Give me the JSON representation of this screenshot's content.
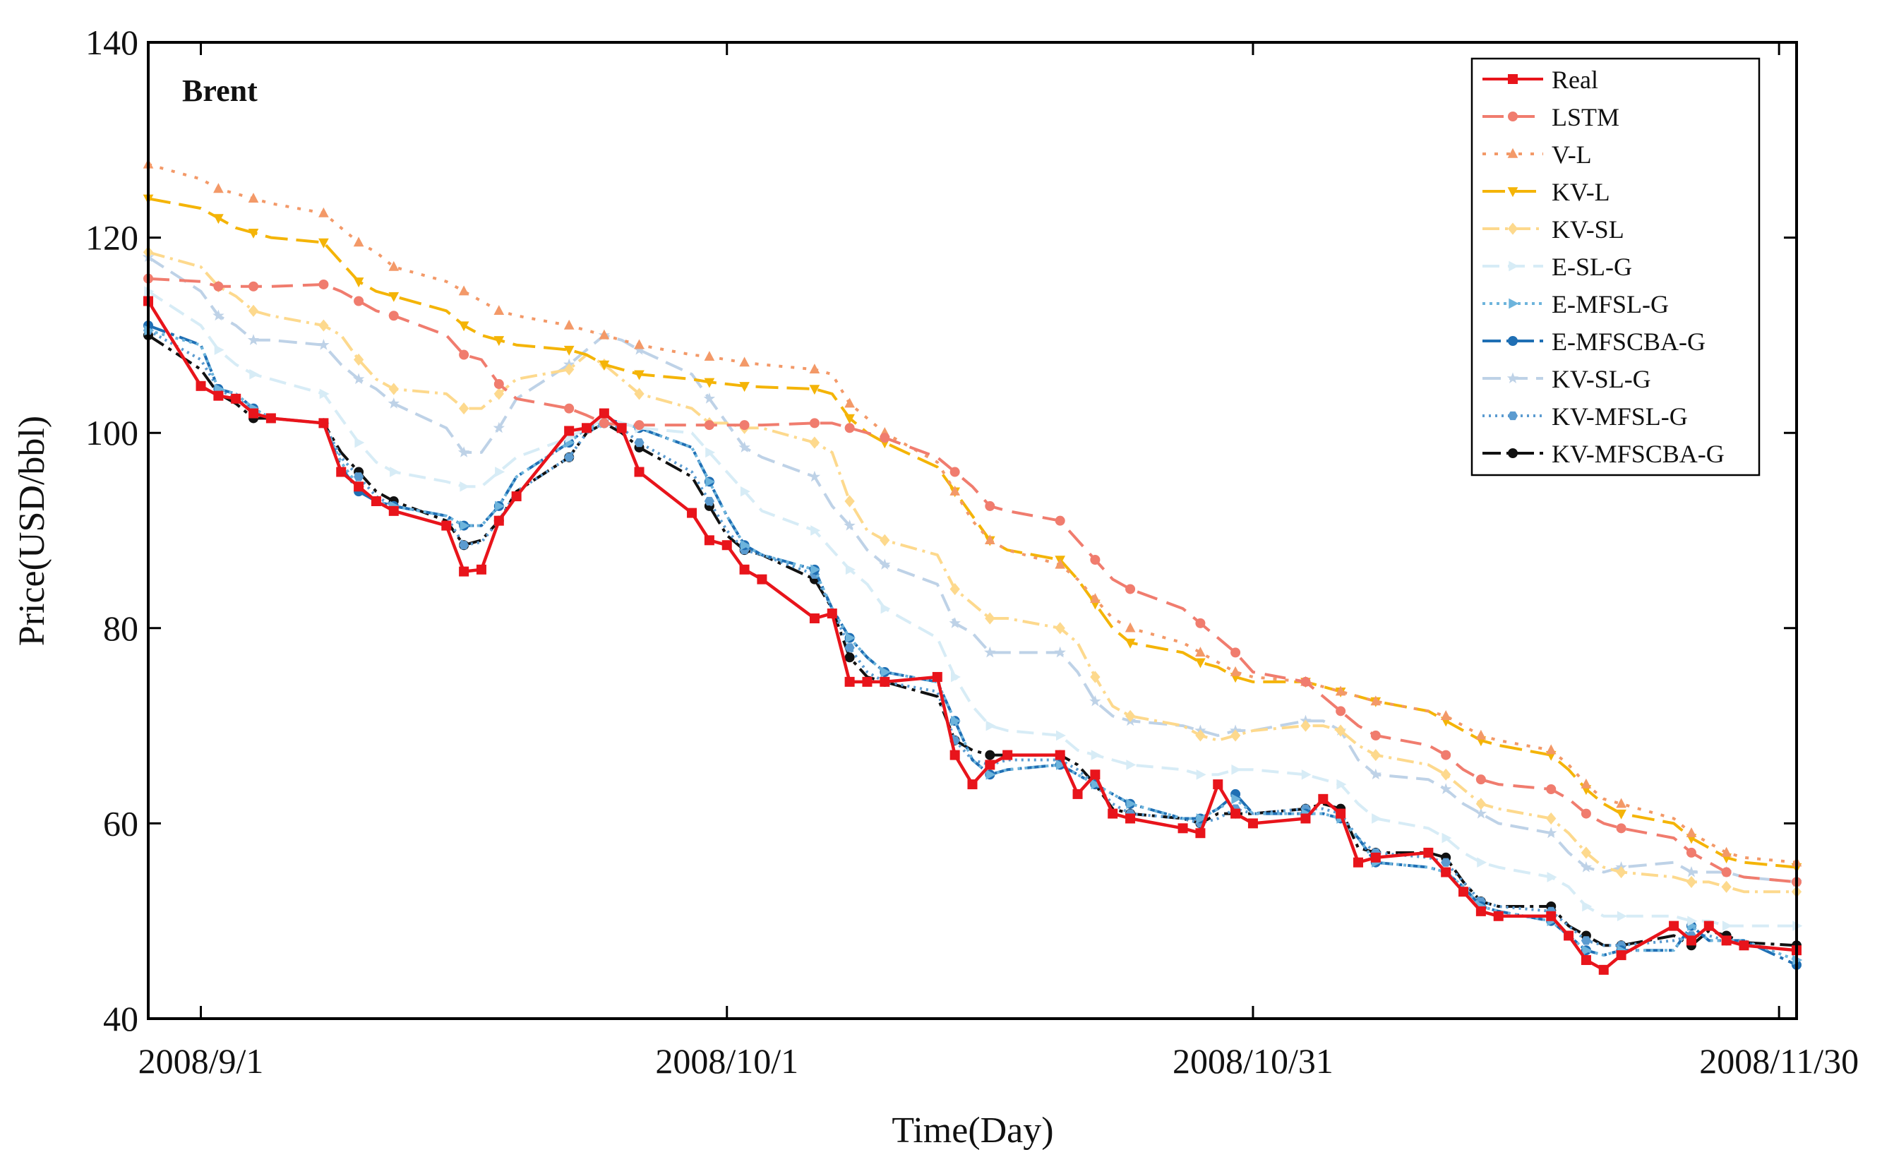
{
  "chart_data": {
    "type": "line",
    "title": "Brent",
    "xlabel": "Time(Day)",
    "ylabel": "Price(USD/bbl)",
    "xlim": [
      -3,
      91
    ],
    "ylim": [
      40,
      140
    ],
    "yticks": [
      40,
      60,
      80,
      100,
      120,
      140
    ],
    "xticks": [
      {
        "x": 0,
        "label": "2008/9/1"
      },
      {
        "x": 30,
        "label": "2008/10/1"
      },
      {
        "x": 60,
        "label": "2008/10/31"
      },
      {
        "x": 90,
        "label": "2008/11/30"
      }
    ],
    "legend_position": "top-right",
    "x": [
      -3,
      0,
      1,
      2,
      3,
      4,
      7,
      8,
      9,
      10,
      11,
      14,
      15,
      16,
      17,
      18,
      21,
      22,
      23,
      24,
      25,
      28,
      29,
      30,
      31,
      32,
      35,
      36,
      37,
      38,
      39,
      42,
      43,
      44,
      45,
      46,
      49,
      50,
      51,
      52,
      53,
      56,
      57,
      58,
      59,
      60,
      63,
      64,
      65,
      66,
      67,
      70,
      71,
      72,
      73,
      74,
      77,
      78,
      79,
      80,
      81,
      84,
      85,
      86,
      87,
      88,
      91
    ],
    "series": [
      {
        "name": "Real",
        "color": "#e8141b",
        "dash": "",
        "marker": "square",
        "values": [
          113.5,
          104.8,
          103.8,
          103.5,
          102.0,
          101.5,
          101.0,
          96.0,
          94.5,
          93.0,
          92.0,
          90.5,
          85.8,
          86.0,
          91.0,
          93.5,
          100.2,
          100.5,
          102.0,
          100.5,
          96.0,
          91.8,
          89.0,
          88.5,
          86.0,
          85.0,
          81.0,
          81.5,
          74.5,
          74.5,
          74.5,
          75.0,
          67.0,
          64.0,
          66.0,
          67.0,
          67.0,
          63.0,
          65.0,
          61.0,
          60.5,
          59.5,
          59.0,
          64.0,
          61.0,
          60.0,
          60.5,
          62.5,
          61.0,
          56.0,
          56.5,
          57.0,
          55.0,
          53.0,
          51.0,
          50.5,
          50.5,
          48.5,
          46.0,
          45.0,
          46.5,
          49.5,
          48.0,
          49.5,
          48.0,
          47.5,
          47.0
        ]
      },
      {
        "name": "LSTM",
        "color": "#f07c6e",
        "dash": "30 14",
        "marker": "circle",
        "values": [
          115.8,
          115.5,
          115.0,
          115.0,
          115.0,
          115.0,
          115.2,
          114.5,
          113.5,
          112.5,
          112.0,
          110.0,
          108.0,
          107.5,
          105.0,
          103.5,
          102.5,
          101.8,
          101.0,
          100.8,
          100.8,
          100.8,
          100.8,
          100.8,
          100.8,
          100.8,
          101.0,
          101.0,
          100.5,
          100.0,
          99.5,
          97.5,
          96.0,
          94.5,
          92.5,
          92.0,
          91.0,
          89.0,
          87.0,
          85.0,
          84.0,
          82.0,
          80.5,
          79.0,
          77.5,
          75.5,
          74.5,
          73.0,
          71.5,
          70.0,
          69.0,
          68.0,
          67.0,
          65.5,
          64.5,
          64.0,
          63.5,
          62.5,
          61.0,
          60.0,
          59.5,
          58.5,
          57.0,
          56.0,
          55.0,
          54.5,
          54.0
        ]
      },
      {
        "name": "V-L",
        "color": "#f39968",
        "dash": "5 12",
        "marker": "triangle-up",
        "values": [
          127.5,
          126.0,
          125.0,
          124.5,
          124.0,
          123.5,
          122.5,
          121.0,
          119.5,
          118.5,
          117.0,
          115.5,
          114.5,
          113.5,
          112.5,
          112.0,
          111.0,
          110.5,
          110.0,
          109.5,
          109.0,
          108.0,
          107.8,
          107.5,
          107.2,
          107.0,
          106.5,
          106.0,
          103.0,
          101.5,
          100.0,
          97.0,
          94.0,
          91.0,
          89.0,
          88.0,
          86.5,
          85.0,
          83.0,
          81.0,
          80.0,
          78.5,
          77.5,
          76.5,
          75.5,
          75.0,
          74.5,
          74.0,
          73.5,
          73.0,
          72.5,
          71.5,
          71.0,
          70.0,
          69.0,
          68.5,
          67.5,
          66.0,
          64.0,
          62.5,
          62.0,
          60.5,
          59.0,
          58.0,
          57.0,
          56.5,
          56.0
        ]
      },
      {
        "name": "KV-L",
        "color": "#f4b407",
        "dash": "32 12",
        "marker": "triangle-down",
        "values": [
          124.0,
          123.0,
          122.0,
          121.0,
          120.5,
          120.0,
          119.5,
          117.5,
          115.5,
          114.5,
          114.0,
          112.5,
          111.0,
          110.0,
          109.5,
          109.0,
          108.5,
          108.0,
          107.0,
          106.5,
          106.0,
          105.5,
          105.2,
          105.0,
          104.8,
          104.7,
          104.5,
          104.0,
          101.5,
          100.0,
          99.0,
          96.5,
          94.0,
          91.5,
          89.0,
          88.0,
          87.0,
          85.0,
          82.5,
          80.0,
          78.5,
          77.5,
          76.5,
          76.0,
          75.0,
          74.5,
          74.5,
          74.0,
          73.5,
          73.0,
          72.5,
          71.5,
          70.5,
          69.5,
          68.5,
          68.0,
          67.0,
          65.5,
          63.5,
          62.0,
          61.0,
          60.0,
          58.5,
          57.5,
          56.5,
          56.0,
          55.5
        ]
      },
      {
        "name": "KV-SL",
        "color": "#fdd98d",
        "dash": "24 8 4 8",
        "marker": "diamond",
        "values": [
          118.5,
          117.0,
          115.0,
          114.0,
          112.5,
          112.0,
          111.0,
          110.0,
          107.5,
          105.5,
          104.5,
          104.0,
          102.5,
          102.5,
          104.0,
          105.5,
          106.5,
          108.0,
          107.0,
          105.5,
          104.0,
          102.5,
          101.0,
          101.0,
          100.5,
          100.5,
          99.0,
          98.0,
          93.0,
          90.0,
          89.0,
          87.5,
          84.0,
          82.5,
          81.0,
          81.0,
          80.0,
          78.5,
          75.0,
          72.0,
          71.0,
          70.0,
          69.0,
          68.5,
          69.0,
          69.5,
          70.0,
          70.0,
          69.5,
          68.0,
          67.0,
          66.0,
          65.0,
          63.5,
          62.0,
          61.5,
          60.5,
          59.0,
          57.0,
          55.5,
          55.0,
          54.5,
          54.0,
          54.0,
          53.5,
          53.0,
          53.0
        ]
      },
      {
        "name": "E-SL-G",
        "color": "#d7ecf6",
        "dash": "24 12",
        "marker": "triangle-right",
        "values": [
          114.5,
          111.0,
          108.5,
          107.0,
          106.0,
          105.5,
          104.0,
          101.5,
          99.0,
          97.0,
          96.0,
          95.0,
          94.5,
          94.5,
          96.0,
          97.5,
          99.5,
          100.5,
          101.5,
          101.0,
          100.5,
          100.0,
          98.0,
          96.0,
          94.0,
          92.0,
          90.0,
          88.0,
          86.0,
          84.5,
          82.0,
          79.0,
          75.0,
          72.0,
          70.0,
          69.5,
          69.0,
          67.5,
          67.0,
          66.5,
          66.0,
          65.5,
          65.0,
          65.0,
          65.5,
          65.5,
          65.0,
          64.5,
          64.0,
          62.0,
          60.5,
          59.5,
          58.5,
          57.0,
          56.0,
          55.5,
          54.5,
          53.5,
          51.5,
          50.5,
          50.5,
          50.5,
          50.0,
          50.0,
          49.5,
          49.5,
          49.5
        ]
      },
      {
        "name": "E-MFSL-G",
        "color": "#6db4dc",
        "dash": "4 6",
        "marker": "triangle-right",
        "values": [
          110.5,
          109.0,
          104.5,
          104.0,
          102.5,
          101.5,
          101.0,
          97.0,
          94.5,
          93.0,
          92.5,
          91.5,
          90.5,
          90.5,
          92.5,
          95.5,
          99.0,
          100.5,
          101.0,
          101.0,
          100.5,
          98.5,
          95.0,
          91.5,
          88.5,
          87.5,
          86.0,
          82.0,
          79.0,
          77.0,
          75.5,
          74.5,
          70.5,
          66.5,
          65.0,
          65.5,
          66.0,
          65.0,
          64.0,
          63.0,
          62.0,
          60.5,
          60.5,
          61.5,
          62.5,
          61.0,
          61.0,
          61.0,
          60.5,
          58.5,
          56.0,
          55.5,
          55.0,
          53.5,
          51.5,
          51.0,
          50.0,
          48.5,
          47.0,
          46.5,
          47.0,
          47.0,
          49.5,
          48.0,
          48.0,
          48.0,
          46.0
        ]
      },
      {
        "name": "E-MFSCBA-G",
        "color": "#1f6fb4",
        "dash": "26 8 5 8",
        "marker": "circle",
        "values": [
          111.0,
          109.0,
          104.5,
          104.0,
          102.5,
          101.5,
          101.0,
          96.5,
          94.0,
          93.0,
          92.5,
          91.5,
          90.5,
          90.5,
          92.5,
          95.5,
          99.0,
          100.5,
          101.5,
          101.0,
          100.5,
          98.5,
          95.0,
          91.5,
          88.5,
          87.5,
          86.0,
          82.0,
          79.0,
          77.0,
          75.5,
          74.5,
          70.5,
          66.5,
          65.0,
          65.5,
          66.0,
          65.0,
          64.0,
          63.0,
          62.0,
          60.5,
          60.5,
          61.5,
          63.0,
          61.0,
          61.0,
          61.0,
          60.5,
          58.5,
          56.0,
          55.5,
          55.0,
          53.5,
          51.5,
          51.0,
          50.0,
          48.5,
          47.0,
          46.5,
          47.0,
          47.0,
          49.5,
          48.0,
          48.0,
          48.0,
          45.5
        ]
      },
      {
        "name": "KV-SL-G",
        "color": "#bed2e7",
        "dash": "26 12",
        "marker": "star",
        "values": [
          118.0,
          114.5,
          112.0,
          111.0,
          109.5,
          109.5,
          109.0,
          107.0,
          105.5,
          104.5,
          103.0,
          100.5,
          98.0,
          98.0,
          100.5,
          103.5,
          107.0,
          108.5,
          110.0,
          109.5,
          108.5,
          106.0,
          103.5,
          101.0,
          98.5,
          97.5,
          95.5,
          92.5,
          90.5,
          88.0,
          86.5,
          84.5,
          80.5,
          79.5,
          77.5,
          77.5,
          77.5,
          75.5,
          72.5,
          71.0,
          70.5,
          70.0,
          69.5,
          69.0,
          69.5,
          69.5,
          70.5,
          70.5,
          69.5,
          66.5,
          65.0,
          64.5,
          63.5,
          62.0,
          61.0,
          60.0,
          59.0,
          57.0,
          55.5,
          55.0,
          55.5,
          56.0,
          55.0,
          55.0,
          55.0,
          54.5,
          54.0
        ]
      },
      {
        "name": "KV-MFSL-G",
        "color": "#5b9bd0",
        "dash": "3 6",
        "marker": "hexagon",
        "values": [
          110.5,
          107.5,
          104.5,
          103.5,
          102.5,
          101.5,
          101.0,
          97.5,
          95.5,
          93.5,
          92.5,
          91.5,
          88.5,
          88.8,
          91.0,
          94.0,
          97.5,
          100.0,
          101.0,
          100.5,
          99.0,
          96.0,
          93.0,
          90.0,
          88.0,
          87.5,
          85.5,
          82.0,
          78.0,
          75.5,
          74.5,
          73.5,
          68.5,
          66.5,
          66.0,
          66.5,
          66.5,
          65.5,
          64.0,
          62.0,
          61.0,
          60.5,
          60.0,
          60.5,
          61.5,
          61.0,
          61.5,
          61.5,
          61.0,
          58.5,
          57.0,
          56.5,
          56.0,
          54.0,
          52.0,
          51.5,
          51.0,
          49.5,
          48.0,
          47.5,
          47.5,
          48.0,
          48.5,
          48.5,
          48.0,
          47.5,
          47.0
        ]
      },
      {
        "name": "KV-MFSCBA-G",
        "color": "#111111",
        "dash": "26 8 5 8",
        "marker": "circle",
        "values": [
          110.0,
          106.5,
          104.0,
          103.0,
          101.5,
          101.5,
          101.0,
          98.0,
          96.0,
          94.0,
          93.0,
          91.0,
          88.5,
          89.0,
          91.0,
          94.0,
          97.5,
          100.0,
          101.0,
          100.0,
          98.5,
          95.5,
          92.5,
          89.5,
          88.0,
          87.5,
          85.0,
          82.0,
          77.0,
          75.0,
          74.5,
          73.0,
          68.5,
          67.5,
          67.0,
          67.0,
          67.0,
          66.0,
          64.0,
          61.5,
          61.0,
          60.5,
          60.0,
          61.0,
          61.0,
          61.0,
          61.5,
          62.0,
          61.5,
          57.5,
          57.0,
          57.0,
          56.5,
          54.0,
          52.0,
          51.5,
          51.5,
          49.5,
          48.5,
          47.5,
          47.5,
          48.5,
          47.5,
          49.0,
          48.5,
          47.8,
          47.5
        ]
      }
    ]
  }
}
